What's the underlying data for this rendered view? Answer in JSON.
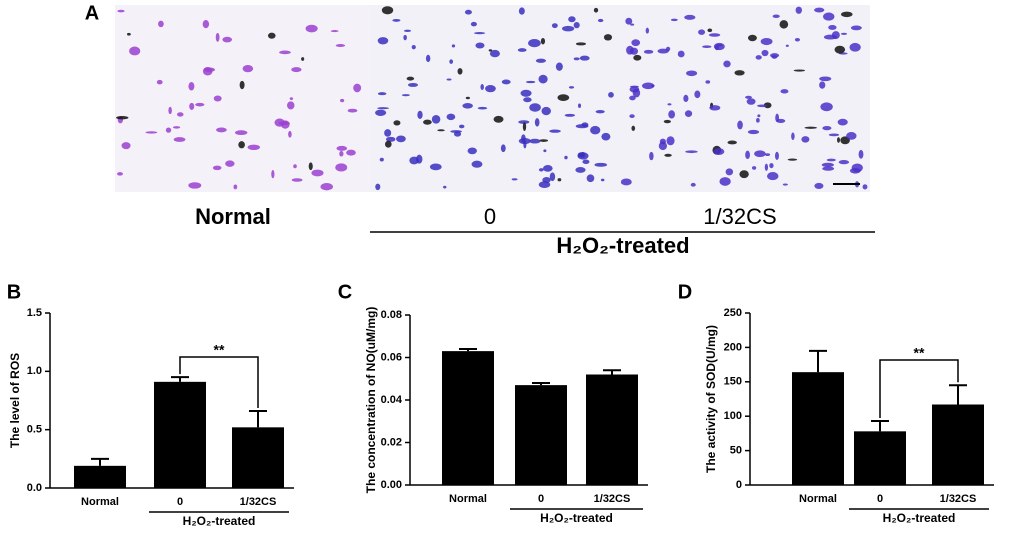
{
  "panel_a": {
    "panel": "A",
    "labels": [
      "Normal",
      "0",
      "1/32CS"
    ],
    "group_label": "H₂O₂-treated"
  },
  "chart_data": [
    {
      "type": "bar",
      "panel": "B",
      "ylabel": "The level of ROS",
      "categories": [
        "Normal",
        "0",
        "1/32CS"
      ],
      "values": [
        0.19,
        0.91,
        0.52
      ],
      "errors": [
        0.06,
        0.04,
        0.14
      ],
      "color": "#000000",
      "ylim": [
        0,
        1.5
      ],
      "yticks": [
        {
          "value": 0,
          "label": "0.0"
        },
        {
          "value": 0.5,
          "label": "0.5"
        },
        {
          "value": 1,
          "label": "1.0"
        },
        {
          "value": 1.5,
          "label": "1.5"
        }
      ],
      "group_label": "H₂O₂-treated",
      "annotation": "**"
    },
    {
      "type": "bar",
      "panel": "C",
      "ylabel": "The concentration of NO(uM/mg)",
      "categories": [
        "Normal",
        "0",
        "1/32CS"
      ],
      "values": [
        0.063,
        0.047,
        0.052
      ],
      "errors": [
        0.001,
        0.001,
        0.002
      ],
      "color": "#000000",
      "ylim": [
        0,
        0.08
      ],
      "yticks": [
        {
          "value": 0,
          "label": "0.00"
        },
        {
          "value": 0.02,
          "label": "0.02"
        },
        {
          "value": 0.04,
          "label": "0.04"
        },
        {
          "value": 0.06,
          "label": "0.06"
        },
        {
          "value": 0.08,
          "label": "0.08"
        }
      ],
      "group_label": "H₂O₂-treated"
    },
    {
      "type": "bar",
      "panel": "D",
      "ylabel": "The activity of SOD(U/mg)",
      "categories": [
        "Normal",
        "0",
        "1/32CS"
      ],
      "values": [
        164,
        78,
        117
      ],
      "errors": [
        31,
        15,
        28
      ],
      "color": "#000000",
      "ylim": [
        0,
        250
      ],
      "yticks": [
        0,
        50,
        100,
        150,
        200,
        250
      ],
      "group_label": "H₂O₂-treated",
      "annotation": "**"
    }
  ]
}
